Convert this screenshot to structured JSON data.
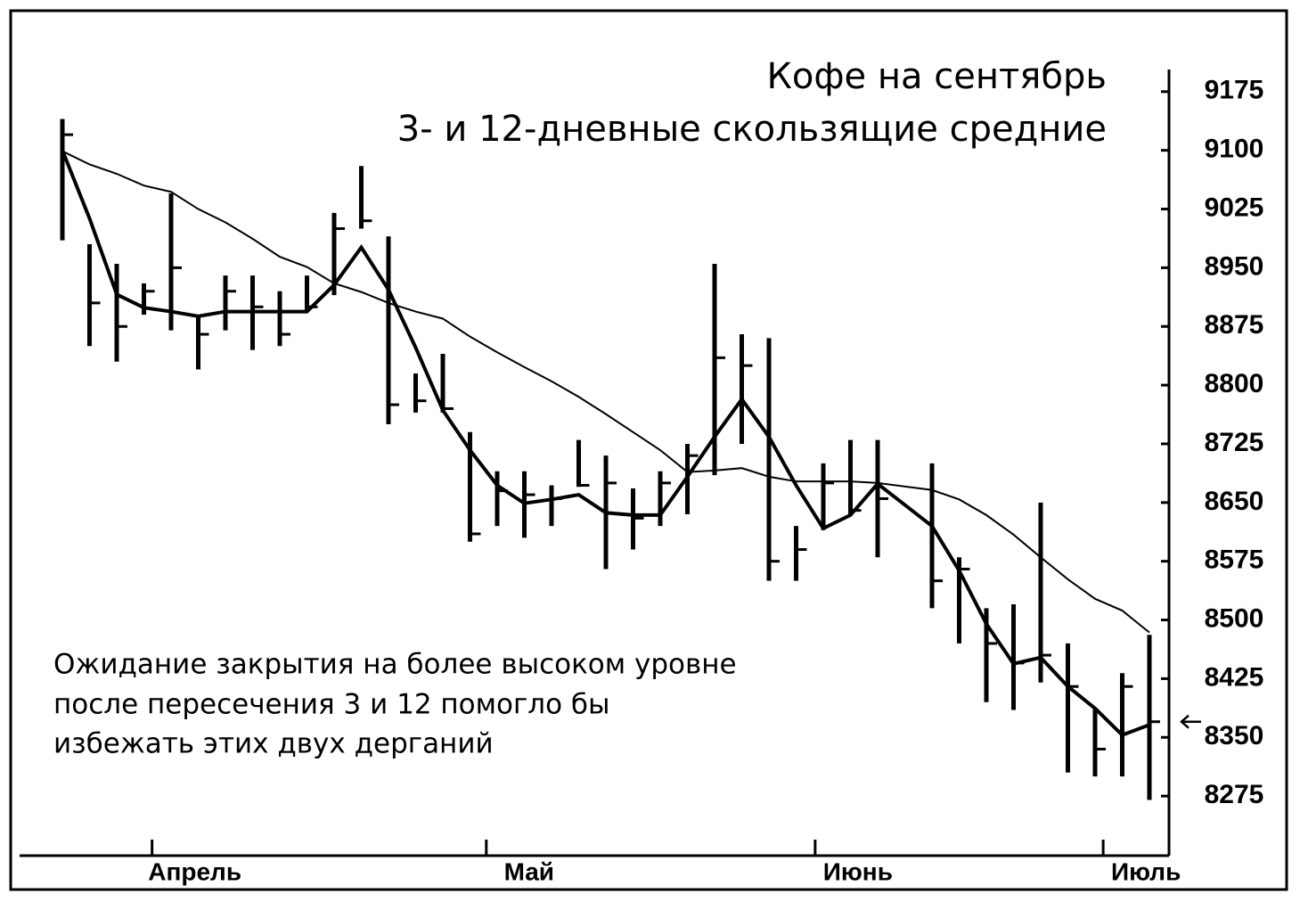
{
  "chart_data": {
    "type": "ohlc",
    "title": "Кофе на сентябрь",
    "subtitle": "3- и 12-дневные скользящие средние",
    "annotation": [
      "Ожидание закрытия на более высоком уровне",
      "после пересечения 3 и 12 помогло бы",
      "избежать этих двух дерганий"
    ],
    "x": [
      0,
      1,
      2,
      3,
      4,
      5,
      6,
      7,
      8,
      9,
      10,
      11,
      12,
      13,
      14,
      15,
      16,
      17,
      18,
      19,
      20,
      21,
      22,
      23,
      24,
      25,
      26,
      27,
      28,
      29,
      30,
      32,
      33,
      34,
      35,
      36,
      37,
      38,
      39,
      40
    ],
    "high": [
      9140,
      8980,
      8955,
      8930,
      9045,
      8890,
      8940,
      8940,
      8920,
      8940,
      9020,
      9080,
      8990,
      8815,
      8840,
      8740,
      8690,
      8690,
      8672,
      8730,
      8710,
      8668,
      8690,
      8725,
      8955,
      8865,
      8860,
      8620,
      8700,
      8730,
      8730,
      8700,
      8580,
      8515,
      8520,
      8650,
      8470,
      8387,
      8432,
      8481
    ],
    "low": [
      8985,
      8850,
      8830,
      8890,
      8870,
      8820,
      8870,
      8845,
      8850,
      8895,
      8915,
      9000,
      8750,
      8765,
      8765,
      8600,
      8620,
      8605,
      8620,
      8670,
      8565,
      8590,
      8620,
      8635,
      8685,
      8725,
      8550,
      8550,
      8615,
      8635,
      8580,
      8515,
      8470,
      8395,
      8385,
      8420,
      8305,
      8300,
      8300,
      8270
    ],
    "close": [
      9120,
      8905,
      8875,
      8920,
      8950,
      8865,
      8920,
      8900,
      8865,
      8900,
      9000,
      9010,
      8775,
      8780,
      8770,
      8610,
      8665,
      8660,
      8655,
      8672,
      8675,
      8630,
      8675,
      8710,
      8835,
      8825,
      8575,
      8590,
      8675,
      8640,
      8655,
      8550,
      8565,
      8470,
      8445,
      8455,
      8415,
      8335,
      8415,
      8370
    ],
    "moving_averages": [
      {
        "color": "#000000",
        "values": [
          9100,
          9013,
          8916,
          8899,
          8894,
          8888,
          8894,
          8894,
          8894,
          8894,
          8928,
          8976,
          8922,
          8848,
          8768,
          8717,
          8672,
          8649,
          8654,
          8660,
          8637,
          8634,
          8634,
          8683,
          8734,
          8782,
          8734,
          8672,
          8617,
          8634,
          8674,
          8620,
          8563,
          8495,
          8444,
          8452,
          8415,
          8387,
          8353,
          8366
        ]
      },
      {
        "color": "#000000",
        "values": [
          9099,
          9082,
          9070,
          9055,
          9047,
          9025,
          9008,
          8987,
          8964,
          8951,
          8930,
          8919,
          8905,
          8894,
          8885,
          8862,
          8842,
          8823,
          8805,
          8785,
          8763,
          8740,
          8717,
          8689,
          8691,
          8694,
          8683,
          8677,
          8677,
          8677,
          8675,
          8666,
          8654,
          8634,
          8609,
          8580,
          8552,
          8527,
          8512,
          8484
        ]
      }
    ],
    "color": "#000000",
    "xlim": [
      -0.4,
      41.9
    ],
    "ylim": [
      8200,
      9275
    ],
    "yticks": [
      8275,
      8350,
      8425,
      8500,
      8575,
      8650,
      8725,
      8800,
      8875,
      8950,
      9025,
      9100,
      9175
    ],
    "xticks": [
      {
        "value": 3.3,
        "label": "Апрель"
      },
      {
        "value": 15.6,
        "label": "Май"
      },
      {
        "value": 27.7,
        "label": "Июнь"
      },
      {
        "value": 38.3,
        "label": "Июль"
      }
    ]
  }
}
